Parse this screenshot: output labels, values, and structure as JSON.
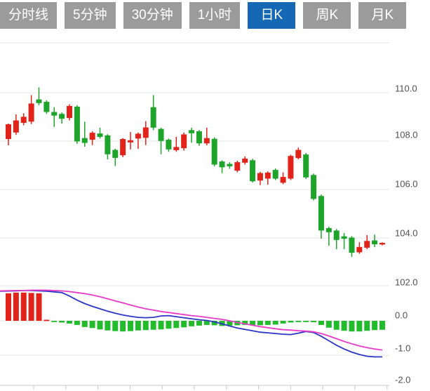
{
  "tab_bar": {
    "items": [
      {
        "label": "分时线",
        "selected": false
      },
      {
        "label": "5分钟",
        "selected": false
      },
      {
        "label": "30分钟",
        "selected": false
      },
      {
        "label": "1小时",
        "selected": false
      },
      {
        "label": "日K",
        "selected": true
      },
      {
        "label": "周K",
        "selected": false
      },
      {
        "label": "月K",
        "selected": false
      }
    ]
  },
  "price_axis_labels": [
    "110.0",
    "108.0",
    "106.0",
    "104.0",
    "102.0"
  ],
  "indicator_axis_labels": [
    "0.0",
    "-1.0",
    "-2.0"
  ],
  "colors": {
    "up": "#e2231a",
    "down": "#1ea42b",
    "hist_up": "#e2231a",
    "hist_down": "#22bb2b",
    "dif_line": "#2a35c4",
    "dea_line": "#e83bc8",
    "gridline": "#e4e4e4",
    "axis_line": "#c9c9c9",
    "label_text": "#4f4f4f",
    "tab_bg": "#9b9b9b",
    "tab_selected_bg": "#1568b4",
    "tab_text": "#ffffff"
  },
  "chart_data": {
    "type": "candlestick",
    "period": "日K",
    "price_axis": {
      "gridlines": [
        110.0,
        108.0,
        106.0,
        104.0,
        102.0
      ],
      "ylim": [
        102.0,
        112.0
      ]
    },
    "candles_ohlc": [
      [
        108.08,
        108.72,
        107.82,
        108.69
      ],
      [
        108.35,
        109.1,
        108.25,
        108.85
      ],
      [
        108.75,
        109.15,
        108.65,
        109.0
      ],
      [
        108.8,
        109.9,
        108.7,
        109.55
      ],
      [
        109.72,
        110.22,
        109.48,
        109.57
      ],
      [
        109.62,
        109.68,
        109.12,
        109.2
      ],
      [
        109.2,
        109.4,
        108.58,
        109.05
      ],
      [
        109.12,
        109.18,
        108.72,
        108.92
      ],
      [
        108.95,
        109.52,
        108.85,
        109.45
      ],
      [
        109.42,
        109.48,
        107.88,
        107.98
      ],
      [
        108.12,
        108.8,
        107.76,
        107.92
      ],
      [
        108.05,
        108.4,
        107.83,
        108.34
      ],
      [
        108.31,
        108.55,
        108.1,
        108.17
      ],
      [
        108.23,
        108.28,
        107.24,
        107.45
      ],
      [
        107.63,
        107.68,
        106.96,
        107.3
      ],
      [
        107.41,
        108.12,
        107.33,
        108.08
      ],
      [
        107.94,
        108.37,
        107.65,
        108.03
      ],
      [
        108.1,
        108.35,
        107.67,
        108.3
      ],
      [
        108.13,
        108.82,
        107.83,
        108.56
      ],
      [
        109.4,
        109.9,
        108.45,
        108.55
      ],
      [
        108.5,
        108.55,
        107.45,
        108.0
      ],
      [
        108.05,
        108.1,
        107.55,
        107.65
      ],
      [
        107.62,
        108.17,
        107.55,
        107.75
      ],
      [
        107.7,
        108.35,
        107.6,
        108.27
      ],
      [
        108.45,
        108.55,
        107.93,
        108.32
      ],
      [
        108.4,
        108.45,
        107.8,
        107.9
      ],
      [
        107.9,
        108.55,
        107.82,
        108.12
      ],
      [
        108.09,
        108.15,
        106.95,
        107.02
      ],
      [
        107.15,
        107.2,
        106.67,
        106.91
      ],
      [
        107.05,
        107.12,
        106.85,
        106.95
      ],
      [
        106.77,
        107.18,
        106.7,
        107.12
      ],
      [
        107.1,
        107.36,
        107.02,
        107.27
      ],
      [
        107.2,
        107.26,
        106.28,
        106.33
      ],
      [
        106.36,
        106.72,
        106.17,
        106.67
      ],
      [
        106.44,
        106.74,
        106.19,
        106.69
      ],
      [
        106.8,
        106.86,
        106.38,
        106.44
      ],
      [
        106.27,
        106.7,
        106.21,
        106.51
      ],
      [
        106.44,
        107.43,
        106.38,
        107.38
      ],
      [
        107.29,
        107.73,
        107.24,
        107.63
      ],
      [
        107.44,
        107.5,
        106.43,
        106.49
      ],
      [
        106.59,
        106.65,
        105.54,
        105.6
      ],
      [
        105.72,
        105.78,
        103.95,
        104.29
      ],
      [
        104.39,
        104.45,
        103.66,
        104.22
      ],
      [
        104.29,
        104.35,
        103.52,
        103.9
      ],
      [
        104.05,
        104.19,
        103.52,
        103.95
      ],
      [
        104.0,
        104.06,
        103.2,
        103.37
      ],
      [
        103.39,
        103.81,
        103.33,
        103.61
      ],
      [
        103.58,
        104.1,
        103.52,
        103.86
      ],
      [
        103.88,
        104.12,
        103.6,
        103.72
      ],
      [
        103.71,
        103.8,
        103.68,
        103.78
      ]
    ],
    "indicator": {
      "type": "macd",
      "gridlines": [
        0.0,
        -1.0,
        -2.0
      ],
      "ylim": [
        -2.0,
        1.0
      ],
      "histogram": [
        0.8,
        0.82,
        0.82,
        0.81,
        0.8,
        0.03,
        -0.03,
        -0.05,
        -0.08,
        -0.12,
        -0.18,
        -0.21,
        -0.25,
        -0.28,
        -0.3,
        -0.31,
        -0.3,
        -0.28,
        -0.27,
        -0.26,
        -0.25,
        -0.23,
        -0.21,
        -0.19,
        -0.16,
        -0.14,
        -0.12,
        -0.13,
        -0.15,
        -0.14,
        -0.13,
        -0.12,
        -0.13,
        -0.13,
        -0.12,
        -0.11,
        -0.08,
        -0.05,
        -0.03,
        -0.02,
        -0.04,
        -0.12,
        -0.2,
        -0.26,
        -0.29,
        -0.31,
        -0.31,
        -0.29,
        -0.27,
        -0.26
      ],
      "dif": [
        0.86,
        0.87,
        0.88,
        0.88,
        0.87,
        0.86,
        0.84,
        0.82,
        0.72,
        0.6,
        0.5,
        0.42,
        0.35,
        0.28,
        0.22,
        0.17,
        0.13,
        0.1,
        0.09,
        0.1,
        0.14,
        0.15,
        0.12,
        0.09,
        0.06,
        0.03,
        0.01,
        -0.03,
        -0.09,
        -0.15,
        -0.21,
        -0.25,
        -0.29,
        -0.33,
        -0.35,
        -0.37,
        -0.39,
        -0.4,
        -0.36,
        -0.31,
        -0.34,
        -0.45,
        -0.58,
        -0.71,
        -0.82,
        -0.91,
        -0.98,
        -1.03,
        -1.05,
        -1.05
      ],
      "dea": [
        0.87,
        0.88,
        0.88,
        0.89,
        0.89,
        0.89,
        0.88,
        0.87,
        0.85,
        0.82,
        0.79,
        0.75,
        0.7,
        0.64,
        0.58,
        0.52,
        0.46,
        0.4,
        0.35,
        0.31,
        0.27,
        0.24,
        0.21,
        0.18,
        0.15,
        0.13,
        0.1,
        0.07,
        0.04,
        0.0,
        -0.05,
        -0.09,
        -0.13,
        -0.17,
        -0.2,
        -0.23,
        -0.26,
        -0.27,
        -0.29,
        -0.3,
        -0.32,
        -0.37,
        -0.44,
        -0.52,
        -0.6,
        -0.67,
        -0.73,
        -0.78,
        -0.82,
        -0.85
      ]
    }
  }
}
